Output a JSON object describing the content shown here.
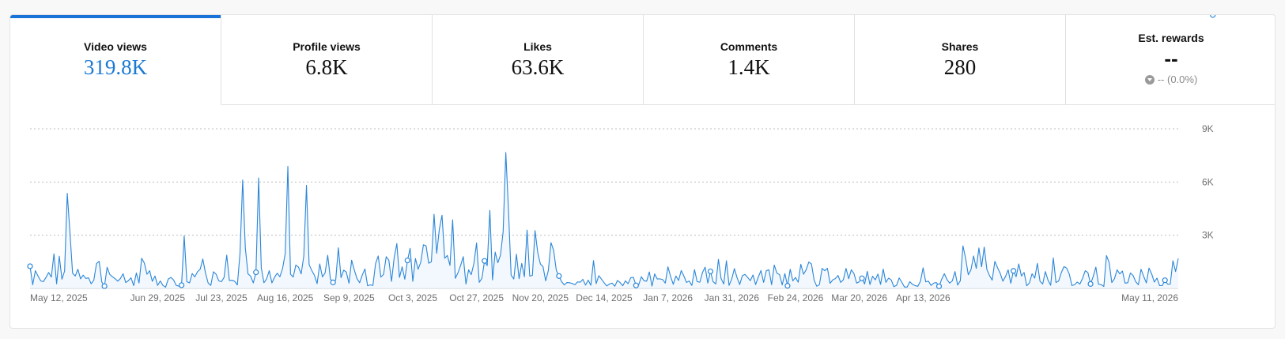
{
  "metrics": [
    {
      "label": "Video views",
      "value": "319.8K",
      "active": true
    },
    {
      "label": "Profile views",
      "value": "6.8K"
    },
    {
      "label": "Likes",
      "value": "63.6K"
    },
    {
      "label": "Comments",
      "value": "1.4K"
    },
    {
      "label": "Shares",
      "value": "280"
    },
    {
      "label": "Est. rewards",
      "value": "--",
      "change": "-- (0.0%)",
      "change_icon": "down-arrow-icon"
    }
  ],
  "colors": {
    "accent": "#1a73d6",
    "line": "#2b86d8",
    "area": "#eaf3fc"
  },
  "chart_data": {
    "type": "line",
    "series_name": "Video views",
    "ylim": [
      0,
      9000
    ],
    "y_ticks": [
      "9K",
      "6K",
      "3K"
    ],
    "y_tick_values": [
      9000,
      6000,
      3000
    ],
    "x_start": "May 12, 2025",
    "x_end": "May 21, 2026",
    "x_tick_labels": [
      "May 12, 2025",
      "Jun 29, 2025",
      "Jul 23, 2025",
      "Aug 16, 2025",
      "Sep 9, 2025",
      "Oct 3, 2025",
      "Oct 27, 2025",
      "Nov 20, 2025",
      "Dec 14, 2025",
      "Jan 7, 2026",
      "Jan 31, 2026",
      "Feb 24, 2026",
      "Mar 20, 2026",
      "Apr 13, 2026",
      "May 11, 2026"
    ],
    "values": [
      1250,
      210,
      1000,
      700,
      430,
      380,
      620,
      900,
      640,
      1950,
      260,
      1820,
      520,
      980,
      5360,
      3180,
      860,
      700,
      1080,
      540,
      750,
      560,
      600,
      260,
      470,
      1400,
      1530,
      360,
      130,
      1190,
      790,
      660,
      550,
      410,
      560,
      830,
      330,
      440,
      600,
      160,
      870,
      310,
      1700,
      1430,
      800,
      1000,
      400,
      700,
      170,
      420,
      170,
      70,
      530,
      620,
      480,
      170,
      130,
      180,
      2960,
      380,
      310,
      840,
      650,
      940,
      1080,
      1660,
      880,
      310,
      170,
      940,
      800,
      430,
      380,
      620,
      1880,
      450,
      460,
      400,
      200,
      2000,
      6110,
      2270,
      820,
      690,
      310,
      910,
      6230,
      1160,
      320,
      540,
      1000,
      310,
      630,
      860,
      660,
      1120,
      1960,
      6880,
      800,
      640,
      1320,
      1200,
      820,
      1830,
      5810,
      1340,
      1010,
      740,
      270,
      1380,
      650,
      870,
      1870,
      540,
      340,
      470,
      2290,
      610,
      1030,
      920,
      290,
      1590,
      1040,
      560,
      320,
      760,
      1100,
      150,
      200,
      170,
      1400,
      1830,
      640,
      790,
      1790,
      1590,
      400,
      1730,
      2530,
      620,
      1220,
      520,
      1580,
      2260,
      400,
      1690,
      1080,
      1480,
      2460,
      2400,
      1420,
      1510,
      4180,
      1980,
      3350,
      4130,
      1700,
      1860,
      1300,
      3870,
      570,
      880,
      1300,
      1790,
      250,
      1050,
      780,
      1420,
      2570,
      340,
      570,
      1550,
      1290,
      4400,
      480,
      2050,
      1450,
      1880,
      3210,
      7660,
      4420,
      750,
      530,
      1930,
      550,
      1410,
      660,
      3290,
      700,
      730,
      3260,
      2040,
      1380,
      1230,
      430,
      1010,
      2580,
      2140,
      1020,
      700,
      380,
      200,
      330,
      320,
      280,
      210,
      370,
      350,
      510,
      190,
      470,
      180,
      1570,
      270,
      720,
      520,
      320,
      140,
      250,
      300,
      120,
      450,
      330,
      150,
      430,
      270,
      600,
      630,
      170,
      200,
      660,
      430,
      410,
      930,
      130,
      820,
      530,
      540,
      500,
      300,
      1220,
      680,
      230,
      700,
      450,
      1010,
      700,
      340,
      420,
      170,
      1060,
      380,
      350,
      900,
      1200,
      300,
      960,
      380,
      250,
      1640,
      560,
      250,
      1560,
      170,
      530,
      1120,
      610,
      220,
      720,
      790,
      620,
      440,
      760,
      220,
      640,
      1010,
      340,
      1000,
      1050,
      210,
      1320,
      860,
      780,
      200,
      840,
      150,
      1080,
      430,
      620,
      350,
      1360,
      800,
      1050,
      1490,
      1380,
      470,
      120,
      220,
      1130,
      1000,
      1140,
      290,
      480,
      560,
      730,
      340,
      490,
      1130,
      550,
      1050,
      840,
      300,
      380,
      570,
      250,
      960,
      220,
      690,
      480,
      810,
      230,
      1090,
      340,
      580,
      480,
      100,
      170,
      590,
      350,
      80,
      80,
      380,
      230,
      160,
      120,
      400,
      1160,
      370,
      410,
      170,
      300,
      330,
      120,
      520,
      830,
      500,
      300,
      430,
      950,
      190,
      430,
      2400,
      1700,
      770,
      1050,
      1830,
      1130,
      2280,
      1220,
      2330,
      1070,
      720,
      470,
      1530,
      1170,
      860,
      410,
      670,
      1050,
      290,
      990,
      660,
      1380,
      700,
      900,
      150,
      310,
      830,
      580,
      1410,
      400,
      250,
      950,
      470,
      180,
      1720,
      330,
      420,
      890,
      1230,
      1150,
      810,
      160,
      210,
      360,
      250,
      570,
      1000,
      900,
      250,
      670,
      1200,
      240,
      220,
      110,
      1850,
      1460,
      330,
      550,
      1050,
      820,
      980,
      300,
      320,
      870,
      730,
      380,
      210,
      1080,
      680,
      310,
      1150,
      820,
      360,
      580,
      160,
      160,
      460,
      240,
      250,
      1560,
      950,
      1690
    ],
    "marked_indices": [
      0,
      28,
      57,
      85,
      114,
      142,
      171,
      199,
      228,
      256,
      285,
      313,
      342,
      370,
      399,
      427,
      445
    ]
  }
}
